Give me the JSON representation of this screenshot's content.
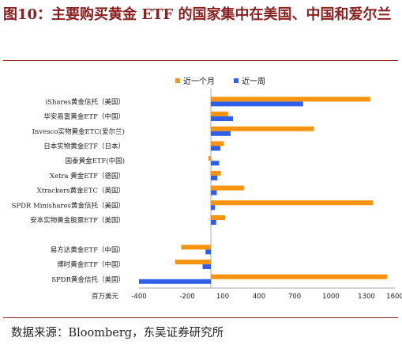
{
  "figure": {
    "title": "图10：主要购买黄金 ETF 的国家集中在美国、中国和爱尔兰",
    "source": "数据来源：Bloomberg，东吴证券研究所"
  },
  "colors": {
    "series1": "#f6940f",
    "series2": "#2f5fe8",
    "axis": "#aaaaaa"
  },
  "chart_data": {
    "type": "bar",
    "orientation": "horizontal",
    "xlabel": "百万美元",
    "xlim": [
      -400,
      1600
    ],
    "xticks": [
      -400,
      -200,
      100,
      400,
      700,
      1000,
      1300,
      1600
    ],
    "legend_position": "top-right",
    "categories": [
      "iShares黄金信托（美国）",
      "华安易富黄金ETF（中国）",
      "Invesco实物黄金ETC(爱尔兰)",
      "日本实物黄金ETF（日本）",
      "国泰黄金ETF(中国)",
      "Xetra 黄金ETF（德国）",
      "Xtrackers黄金ETC（英国）",
      "SPDR Minishares黄金信托（美国）",
      "安本实物黄金股票ETF（美国）",
      "",
      "易方达黄金ETF（中国）",
      "博时黄金ETF（中国）",
      "SPDR黄金信托（美国）"
    ],
    "series": [
      {
        "name": "近一个月",
        "values": [
          1340,
          145,
          860,
          110,
          -20,
          85,
          275,
          1370,
          120,
          null,
          -225,
          -250,
          1520
        ]
      },
      {
        "name": "近一周",
        "values": [
          770,
          185,
          165,
          80,
          70,
          55,
          50,
          35,
          45,
          null,
          -45,
          -70,
          -430
        ]
      }
    ]
  }
}
